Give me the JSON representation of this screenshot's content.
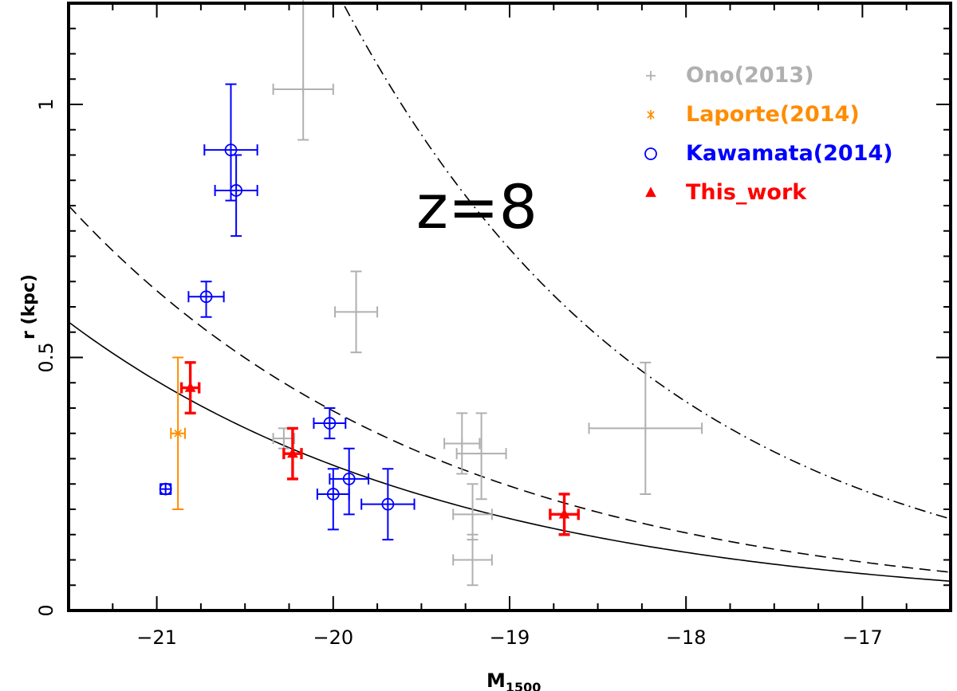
{
  "chart_data": {
    "type": "scatter",
    "title": "",
    "xlabel": "M",
    "xlabel_sub": "1500",
    "ylabel": "r (kpc)",
    "xlim": [
      -21.5,
      -16.5
    ],
    "ylim": [
      0,
      1.2
    ],
    "x_ticks": [
      -21,
      -20,
      -19,
      -18,
      -17
    ],
    "x_tick_labels": [
      "−21",
      "−20",
      "−19",
      "−18",
      "−17"
    ],
    "y_ticks": [
      0,
      0.5,
      1
    ],
    "y_tick_labels": [
      "0",
      "0.5",
      "1"
    ],
    "annotation": "z=8",
    "legend_position": "top-right",
    "series": [
      {
        "name": "Ono(2013)",
        "color": "#b0b0b0",
        "marker": "plus",
        "points": [
          {
            "x": -20.17,
            "y": 1.03,
            "xerr": 0.17,
            "yerr_low": 0.1,
            "yerr_high": 0.2
          },
          {
            "x": -19.87,
            "y": 0.59,
            "xerr": 0.12,
            "yerr_low": 0.08,
            "yerr_high": 0.08
          },
          {
            "x": -20.28,
            "y": 0.34,
            "xerr": 0.06,
            "yerr_low": 0.02,
            "yerr_high": 0.02
          },
          {
            "x": -19.27,
            "y": 0.33,
            "xerr": 0.1,
            "yerr_low": 0.06,
            "yerr_high": 0.06
          },
          {
            "x": -19.16,
            "y": 0.31,
            "xerr": 0.14,
            "yerr_low": 0.09,
            "yerr_high": 0.08
          },
          {
            "x": -19.21,
            "y": 0.19,
            "xerr": 0.11,
            "yerr_low": 0.05,
            "yerr_high": 0.06
          },
          {
            "x": -19.21,
            "y": 0.1,
            "xerr": 0.11,
            "yerr_low": 0.05,
            "yerr_high": 0.05
          },
          {
            "x": -18.23,
            "y": 0.36,
            "xerr": 0.32,
            "yerr_low": 0.13,
            "yerr_high": 0.13
          }
        ]
      },
      {
        "name": "Laporte(2014)",
        "color": "#ff8c00",
        "marker": "asterisk",
        "points": [
          {
            "x": -20.88,
            "y": 0.35,
            "xerr": 0.04,
            "yerr_low": 0.15,
            "yerr_high": 0.15
          }
        ]
      },
      {
        "name": "Kawamata(2014)",
        "color": "#0000ff",
        "marker": "circle",
        "points": [
          {
            "x": -20.58,
            "y": 0.91,
            "xerr": 0.15,
            "yerr_low": 0.1,
            "yerr_high": 0.13
          },
          {
            "x": -20.55,
            "y": 0.83,
            "xerr": 0.12,
            "yerr_low": 0.09,
            "yerr_high": 0.07
          },
          {
            "x": -20.72,
            "y": 0.62,
            "xerr": 0.1,
            "yerr_low": 0.04,
            "yerr_high": 0.03
          },
          {
            "x": -20.02,
            "y": 0.37,
            "xerr": 0.09,
            "yerr_low": 0.03,
            "yerr_high": 0.03
          },
          {
            "x": -19.91,
            "y": 0.26,
            "xerr": 0.11,
            "yerr_low": 0.07,
            "yerr_high": 0.06
          },
          {
            "x": -20.0,
            "y": 0.23,
            "xerr": 0.09,
            "yerr_low": 0.07,
            "yerr_high": 0.05
          },
          {
            "x": -19.69,
            "y": 0.21,
            "xerr": 0.15,
            "yerr_low": 0.07,
            "yerr_high": 0.07
          },
          {
            "x": -20.95,
            "y": 0.24,
            "xerr": 0.03,
            "yerr_low": 0.01,
            "yerr_high": 0.01
          }
        ]
      },
      {
        "name": "This_work",
        "color": "#ff0000",
        "marker": "triangle",
        "points": [
          {
            "x": -20.81,
            "y": 0.44,
            "xerr": 0.05,
            "yerr_low": 0.05,
            "yerr_high": 0.05
          },
          {
            "x": -20.23,
            "y": 0.31,
            "xerr": 0.05,
            "yerr_low": 0.05,
            "yerr_high": 0.05
          },
          {
            "x": -18.69,
            "y": 0.19,
            "xerr": 0.08,
            "yerr_low": 0.04,
            "yerr_high": 0.04
          }
        ]
      }
    ],
    "curves": [
      {
        "name": "solid-relation",
        "style": "solid",
        "r0": 0.57,
        "slope_per_mag": 0.1987
      },
      {
        "name": "dashed-relation",
        "style": "dashed",
        "r0": 0.8,
        "slope_per_mag": 0.2049
      },
      {
        "name": "dashdot-relation",
        "style": "dashdot",
        "r0": 2.82,
        "slope_per_mag": 0.2385
      }
    ]
  }
}
